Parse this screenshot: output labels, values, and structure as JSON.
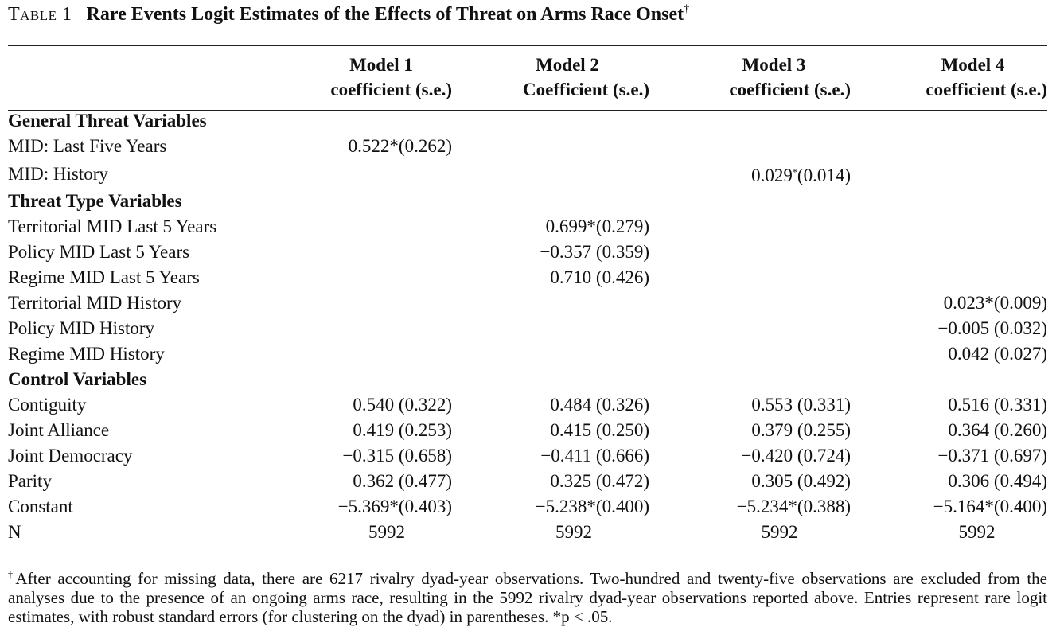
{
  "caption": {
    "label": "Table 1",
    "title": "Rare Events Logit Estimates of the Effects of Threat on Arms Race Onset",
    "dagger": "†"
  },
  "columns": [
    {
      "line1": "Model 1",
      "line2": "coefficient (s.e.)"
    },
    {
      "line1": "Model 2",
      "line2": "Coefficient (s.e.)"
    },
    {
      "line1": "Model 3",
      "line2": "coefficient (s.e.)"
    },
    {
      "line1": "Model 4",
      "line2": "coefficient (s.e.)"
    }
  ],
  "sections": {
    "general": "General Threat Variables",
    "type": "Threat Type Variables",
    "control": "Control Variables"
  },
  "rows": {
    "mid_last5": {
      "label": "MID: Last Five Years",
      "m1": "0.522*(0.262)",
      "m2": "",
      "m3": "",
      "m4": ""
    },
    "mid_history": {
      "label": "MID: History",
      "m1": "",
      "m2": "",
      "m3_coef": "0.029",
      "m3_star": "*",
      "m3_se": "(0.014)",
      "m4": ""
    },
    "terr_last5": {
      "label": "Territorial MID Last 5 Years",
      "m1": "",
      "m2": "0.699*(0.279)",
      "m3": "",
      "m4": ""
    },
    "policy_last5": {
      "label": "Policy MID Last 5 Years",
      "m1": "",
      "m2": "−0.357 (0.359)",
      "m3": "",
      "m4": ""
    },
    "regime_last5": {
      "label": "Regime MID Last 5 Years",
      "m1": "",
      "m2": "0.710 (0.426)",
      "m3": "",
      "m4": ""
    },
    "terr_history": {
      "label": "Territorial MID History",
      "m1": "",
      "m2": "",
      "m3": "",
      "m4": "0.023*(0.009)"
    },
    "policy_history": {
      "label": "Policy MID History",
      "m1": "",
      "m2": "",
      "m3": "",
      "m4": "−0.005 (0.032)"
    },
    "regime_history": {
      "label": "Regime MID History",
      "m1": "",
      "m2": "",
      "m3": "",
      "m4": "0.042 (0.027)"
    },
    "contiguity": {
      "label": "Contiguity",
      "m1": "0.540 (0.322)",
      "m2": "0.484 (0.326)",
      "m3": "0.553 (0.331)",
      "m4": "0.516 (0.331)"
    },
    "alliance": {
      "label": "Joint Alliance",
      "m1": "0.419 (0.253)",
      "m2": "0.415 (0.250)",
      "m3": "0.379 (0.255)",
      "m4": "0.364 (0.260)"
    },
    "democracy": {
      "label": "Joint Democracy",
      "m1": "−0.315 (0.658)",
      "m2": "−0.411 (0.666)",
      "m3": "−0.420 (0.724)",
      "m4": "−0.371 (0.697)"
    },
    "parity": {
      "label": "Parity",
      "m1": "0.362 (0.477)",
      "m2": "0.325 (0.472)",
      "m3": "0.305 (0.492)",
      "m4": "0.306 (0.494)"
    },
    "constant": {
      "label": "Constant",
      "m1": "−5.369*(0.403)",
      "m2": "−5.238*(0.400)",
      "m3": "−5.234*(0.388)",
      "m4": "−5.164*(0.400)"
    },
    "n": {
      "label": "N",
      "m1": "5992",
      "m2": "5992",
      "m3": "5992",
      "m4": "5992"
    }
  },
  "notes": {
    "dagger": "†",
    "text": "After accounting for missing data, there are 6217 rivalry dyad-year observations. Two-hundred and twenty-five observations are excluded from the analyses due to the presence of an ongoing arms race, resulting in the 5992 rivalry dyad-year observations reported above. Entries represent rare logit estimates, with robust standard errors (for clustering on the dyad) in parentheses. *p < .05."
  }
}
